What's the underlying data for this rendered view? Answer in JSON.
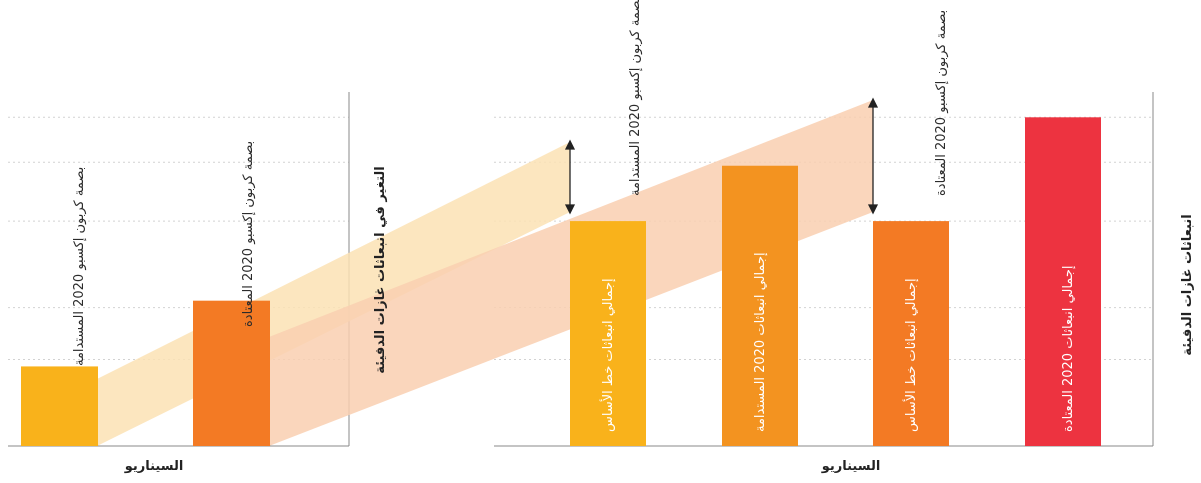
{
  "chart_data": [
    {
      "type": "bar",
      "title": "",
      "xlabel": "السيناريو",
      "ylabel": "التغير في انبعاثات غازات الدفيئة",
      "categories": [
        "بصمة كربون إكسبو 2020 المستدامة",
        "بصمة كربون إكسبو 2020 المعتادة"
      ],
      "values": [
        23,
        42
      ],
      "ylim": [
        0,
        100
      ],
      "grid": true,
      "colors": [
        "#F9B21B",
        "#F37A24"
      ]
    },
    {
      "type": "bar",
      "title": "",
      "xlabel": "السيناريو",
      "ylabel": "انبعاثات غازات الدفيئة",
      "categories": [
        "إجمالي انبعاثات خط الأساس",
        "إجمالي انبعاثات 2020 المستدامة",
        "إجمالي انبعاثات خط الأساس",
        "إجمالي انبعاثات 2020 المعتادة"
      ],
      "values": [
        65,
        81,
        65,
        95
      ],
      "ylim": [
        0,
        100
      ],
      "grid": true,
      "colors": [
        "#F9B21B",
        "#F39320",
        "#F37A24",
        "#ED3340"
      ],
      "annotations": [
        {
          "text": "بصمة كربون إكسبو 2020 المستدامة",
          "attached_to": 0
        },
        {
          "text": "بصمة كربون إكسبو 2020 المعتادة",
          "attached_to": 2
        }
      ]
    }
  ],
  "links": {
    "sustainable_color": "#FCE2B4",
    "usual_color": "#F9CFB0"
  }
}
